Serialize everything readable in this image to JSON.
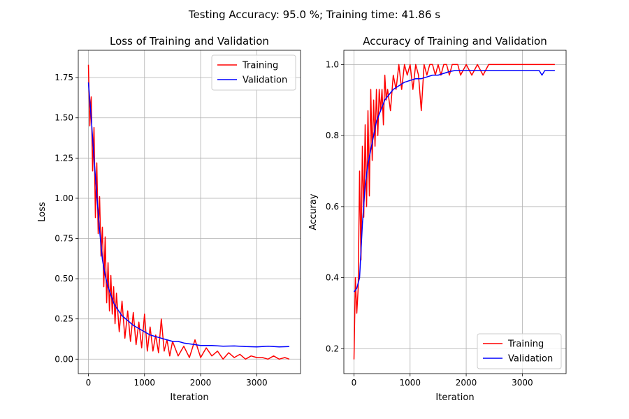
{
  "suptitle": "Testing Accuracy: 95.0 %; Training time: 41.86 s",
  "chart_data": [
    {
      "type": "line",
      "title": "Loss of Training and Validation",
      "xlabel": "Iteration",
      "ylabel": "Loss",
      "xlim": [
        -180,
        3780
      ],
      "ylim": [
        -0.09,
        1.92
      ],
      "xticks": [
        0,
        1000,
        2000,
        3000
      ],
      "xtick_labels": [
        "0",
        "1000",
        "2000",
        "3000"
      ],
      "yticks": [
        0,
        0.25,
        0.5,
        0.75,
        1.0,
        1.25,
        1.5,
        1.75
      ],
      "ytick_labels": [
        "0.00",
        "0.25",
        "0.50",
        "0.75",
        "1.00",
        "1.25",
        "1.50",
        "1.75"
      ],
      "grid": true,
      "legend_position": "upper right",
      "series": [
        {
          "name": "Training",
          "color": "#ff0000",
          "x": [
            0,
            25,
            50,
            75,
            100,
            125,
            150,
            175,
            200,
            225,
            250,
            275,
            300,
            325,
            350,
            375,
            400,
            425,
            450,
            475,
            500,
            550,
            600,
            650,
            700,
            750,
            800,
            850,
            900,
            950,
            1000,
            1050,
            1100,
            1150,
            1200,
            1250,
            1300,
            1350,
            1400,
            1450,
            1500,
            1600,
            1700,
            1800,
            1900,
            2000,
            2100,
            2200,
            2300,
            2400,
            2500,
            2600,
            2700,
            2800,
            2900,
            3000,
            3100,
            3200,
            3300,
            3400,
            3500,
            3580
          ],
          "y": [
            1.83,
            1.45,
            1.63,
            1.17,
            1.44,
            0.88,
            1.22,
            0.78,
            1.01,
            0.64,
            0.82,
            0.45,
            0.76,
            0.35,
            0.6,
            0.3,
            0.52,
            0.28,
            0.45,
            0.22,
            0.41,
            0.17,
            0.36,
            0.13,
            0.3,
            0.11,
            0.29,
            0.09,
            0.23,
            0.07,
            0.28,
            0.05,
            0.2,
            0.05,
            0.15,
            0.04,
            0.25,
            0.05,
            0.12,
            0.02,
            0.11,
            0.02,
            0.08,
            0.01,
            0.12,
            0.01,
            0.07,
            0.02,
            0.05,
            0.0,
            0.04,
            0.01,
            0.03,
            0.0,
            0.02,
            0.01,
            0.01,
            0.0,
            0.02,
            0.0,
            0.01,
            0.0
          ]
        },
        {
          "name": "Validation",
          "color": "#0000ff",
          "x": [
            0,
            50,
            100,
            150,
            200,
            250,
            300,
            350,
            400,
            450,
            500,
            600,
            700,
            800,
            900,
            1000,
            1100,
            1200,
            1300,
            1400,
            1500,
            1600,
            1700,
            1800,
            1900,
            2000,
            2200,
            2400,
            2600,
            2800,
            3000,
            3200,
            3400,
            3580
          ],
          "y": [
            1.72,
            1.5,
            1.25,
            1.02,
            0.8,
            0.62,
            0.52,
            0.45,
            0.4,
            0.35,
            0.32,
            0.27,
            0.24,
            0.21,
            0.19,
            0.17,
            0.15,
            0.14,
            0.13,
            0.12,
            0.11,
            0.11,
            0.1,
            0.095,
            0.09,
            0.085,
            0.085,
            0.08,
            0.082,
            0.078,
            0.076,
            0.08,
            0.076,
            0.078
          ]
        }
      ]
    },
    {
      "type": "line",
      "title": "Accuracy of Training and Validation",
      "xlabel": "Iteration",
      "ylabel": "Accuray",
      "xlim": [
        -180,
        3780
      ],
      "ylim": [
        0.13,
        1.04
      ],
      "xticks": [
        0,
        1000,
        2000,
        3000
      ],
      "xtick_labels": [
        "0",
        "1000",
        "2000",
        "3000"
      ],
      "yticks": [
        0.2,
        0.4,
        0.6,
        0.8,
        1.0
      ],
      "ytick_labels": [
        "0.2",
        "0.4",
        "0.6",
        "0.8",
        "1.0"
      ],
      "grid": true,
      "legend_position": "lower right",
      "series": [
        {
          "name": "Training",
          "color": "#ff0000",
          "x": [
            0,
            25,
            50,
            75,
            100,
            125,
            150,
            175,
            200,
            225,
            250,
            275,
            300,
            325,
            350,
            375,
            400,
            425,
            450,
            475,
            500,
            525,
            550,
            575,
            600,
            650,
            700,
            750,
            800,
            850,
            900,
            950,
            1000,
            1050,
            1100,
            1150,
            1200,
            1250,
            1300,
            1350,
            1400,
            1450,
            1500,
            1550,
            1600,
            1650,
            1700,
            1750,
            1800,
            1850,
            1900,
            2000,
            2100,
            2200,
            2300,
            2400,
            2500,
            2600,
            2800,
            3000,
            3200,
            3400,
            3580
          ],
          "y": [
            0.17,
            0.4,
            0.3,
            0.37,
            0.7,
            0.45,
            0.77,
            0.57,
            0.83,
            0.6,
            0.87,
            0.63,
            0.93,
            0.73,
            0.9,
            0.77,
            0.93,
            0.8,
            0.93,
            0.87,
            0.93,
            0.83,
            0.97,
            0.9,
            0.93,
            0.87,
            0.97,
            0.93,
            1.0,
            0.93,
            1.0,
            0.97,
            1.0,
            0.93,
            1.0,
            0.97,
            0.87,
            1.0,
            0.97,
            1.0,
            1.0,
            0.97,
            1.0,
            0.97,
            1.0,
            1.0,
            0.97,
            1.0,
            1.0,
            1.0,
            0.97,
            1.0,
            0.97,
            1.0,
            0.97,
            1.0,
            1.0,
            1.0,
            1.0,
            1.0,
            1.0,
            1.0,
            1.0
          ]
        },
        {
          "name": "Validation",
          "color": "#0000ff",
          "x": [
            0,
            50,
            100,
            150,
            200,
            250,
            300,
            350,
            400,
            450,
            500,
            550,
            600,
            700,
            800,
            900,
            1000,
            1100,
            1200,
            1300,
            1400,
            1500,
            1600,
            1700,
            1800,
            1900,
            2000,
            2200,
            2400,
            2600,
            2800,
            3000,
            3200,
            3300,
            3350,
            3400,
            3500,
            3580
          ],
          "y": [
            0.36,
            0.37,
            0.4,
            0.55,
            0.66,
            0.72,
            0.76,
            0.8,
            0.84,
            0.86,
            0.88,
            0.9,
            0.91,
            0.93,
            0.94,
            0.95,
            0.955,
            0.96,
            0.96,
            0.965,
            0.97,
            0.97,
            0.975,
            0.98,
            0.983,
            0.983,
            0.983,
            0.983,
            0.983,
            0.983,
            0.983,
            0.983,
            0.983,
            0.983,
            0.97,
            0.983,
            0.983,
            0.983
          ]
        }
      ]
    }
  ]
}
